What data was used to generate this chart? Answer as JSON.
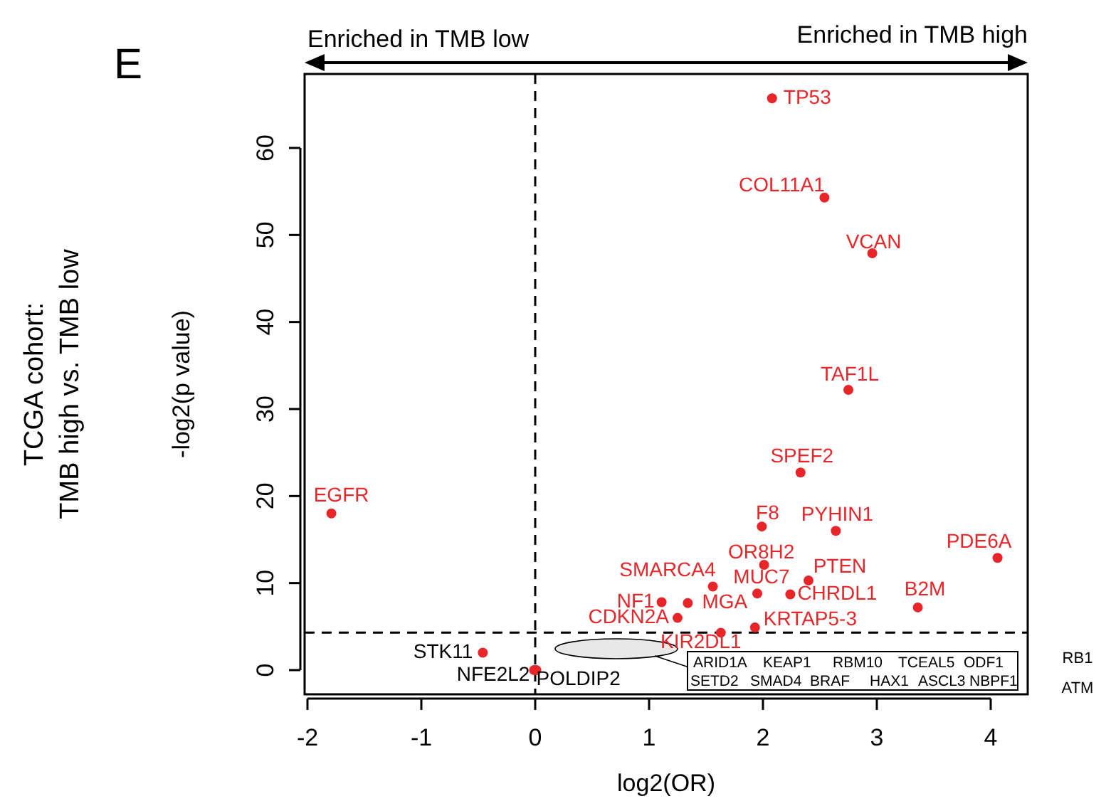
{
  "chart_data": {
    "type": "scatter",
    "xlabel": "log2(OR)",
    "ylabel": "-log2(p value)",
    "xlim": [
      -2.025,
      4.325
    ],
    "ylim": [
      -2.78,
      68.5
    ],
    "xticks": [
      -2,
      -1,
      0,
      1,
      2,
      3,
      4
    ],
    "yticks": [
      0,
      10,
      20,
      30,
      40,
      50,
      60
    ],
    "marker": "circle",
    "series": [
      {
        "color": "#e8262a",
        "x": [
          2.08,
          2.54,
          2.96,
          2.75,
          2.33,
          1.99,
          2.64,
          4.06,
          2.01,
          2.4,
          1.95,
          2.24,
          1.56,
          1.11,
          1.34,
          3.36,
          1.25,
          1.93,
          1.63,
          -1.79
        ],
        "values": [
          65.7,
          54.3,
          47.9,
          32.2,
          22.7,
          16.5,
          16.0,
          12.9,
          12.1,
          10.3,
          8.8,
          8.7,
          9.6,
          7.8,
          7.7,
          7.2,
          6.0,
          4.9,
          4.3,
          18.0
        ]
      },
      {
        "color": "#e8262a",
        "x": [
          -0.46,
          -0.01,
          0.01
        ],
        "values": [
          2.0,
          0,
          0
        ]
      }
    ],
    "ref_lines": [
      {
        "axis": "x",
        "value": 0,
        "line_style": "dashed",
        "color": "#000000"
      },
      {
        "axis": "y",
        "value": 4.32,
        "line_style": "dashed",
        "color": "#000000"
      }
    ],
    "annotations": [
      {
        "text": "TP53",
        "x": 2.08,
        "y": 65.7
      },
      {
        "text": "COL11A1",
        "x": 2.54,
        "y": 54.3
      },
      {
        "text": "VCAN",
        "x": 2.96,
        "y": 47.9
      },
      {
        "text": "TAF1L",
        "x": 2.75,
        "y": 32.2
      },
      {
        "text": "SPEF2",
        "x": 2.33,
        "y": 22.7
      },
      {
        "text": "F8",
        "x": 1.99,
        "y": 16.5
      },
      {
        "text": "PYHIN1",
        "x": 2.64,
        "y": 16.0
      },
      {
        "text": "PDE6A",
        "x": 4.06,
        "y": 12.9
      },
      {
        "text": "OR8H2",
        "x": 2.01,
        "y": 12.1
      },
      {
        "text": "PTEN",
        "x": 2.4,
        "y": 10.3
      },
      {
        "text": "MUC7",
        "x": 1.95,
        "y": 8.8
      },
      {
        "text": "CHRDL1",
        "x": 2.24,
        "y": 8.7
      },
      {
        "text": "SMARCA4",
        "x": 1.56,
        "y": 9.6
      },
      {
        "text": "NF1",
        "x": 1.11,
        "y": 7.8
      },
      {
        "text": "MGA",
        "x": 1.34,
        "y": 7.7
      },
      {
        "text": "B2M",
        "x": 3.36,
        "y": 7.2
      },
      {
        "text": "CDKN2A",
        "x": 1.25,
        "y": 6.0
      },
      {
        "text": "KRTAP5-3",
        "x": 1.93,
        "y": 4.9
      },
      {
        "text": "KIR2DL1",
        "x": 1.63,
        "y": 4.3
      },
      {
        "text": "EGFR",
        "x": -1.79,
        "y": 18.0
      },
      {
        "text": "STK11",
        "x": -0.46,
        "y": 2.0
      },
      {
        "text": "NFE2L2",
        "x": -0.01,
        "y": 0
      },
      {
        "text": "POLDIP2",
        "x": 0.01,
        "y": 0
      },
      "E",
      "TCGA cohort:",
      "TMB high vs. TMB low",
      "Enriched in TMB low",
      "Enriched in TMB high",
      "ARID1A",
      "KEAP1",
      "RBM10",
      "TCEAL5",
      "ODF1",
      "SETD2",
      "SMAD4",
      "BRAF",
      "HAX1",
      "ASCL3",
      "NBPF1",
      "RB1",
      "ATM"
    ]
  }
}
